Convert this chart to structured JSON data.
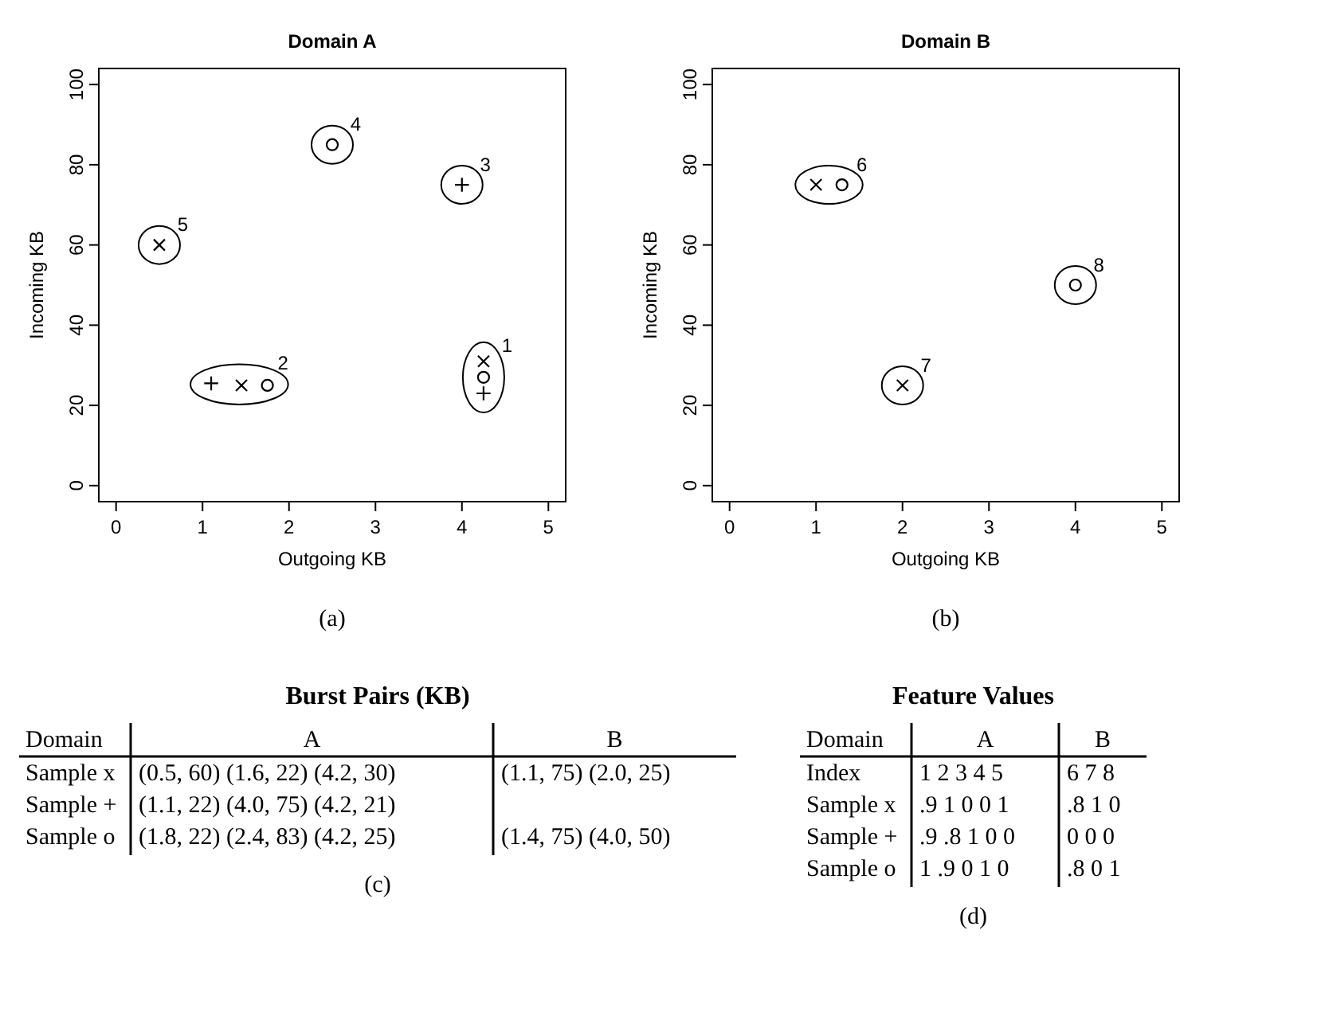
{
  "chart_data": [
    {
      "type": "scatter",
      "title": "Domain A",
      "xlabel": "Outgoing KB",
      "ylabel": "Incoming KB",
      "xlim": [
        -0.2,
        5.2
      ],
      "ylim": [
        -4,
        104
      ],
      "xticks": [
        0,
        1,
        2,
        3,
        4,
        5
      ],
      "yticks": [
        0,
        20,
        40,
        60,
        80,
        100
      ],
      "series": [
        {
          "color": "#000000",
          "marker": "cross",
          "x": [
            0.5,
            1.45,
            4.25
          ],
          "values": [
            60,
            25,
            31
          ]
        },
        {
          "color": "#000000",
          "marker": "plus",
          "x": [
            1.1,
            4.0,
            4.25
          ],
          "values": [
            25.5,
            75,
            23
          ]
        },
        {
          "color": "#000000",
          "marker": "circle",
          "x": [
            1.75,
            2.5,
            4.25
          ],
          "values": [
            25,
            85,
            27
          ]
        }
      ],
      "annotations": [
        {
          "text": "1",
          "x": 4.25,
          "y": 27
        },
        {
          "text": "2",
          "x": 1.45,
          "y": 25
        },
        {
          "text": "3",
          "x": 4.0,
          "y": 75
        },
        {
          "text": "4",
          "x": 2.5,
          "y": 85
        },
        {
          "text": "5",
          "x": 0.5,
          "y": 60
        },
        "(a)"
      ]
    },
    {
      "type": "scatter",
      "title": "Domain B",
      "xlabel": "Outgoing KB",
      "ylabel": "Incoming KB",
      "xlim": [
        -0.2,
        5.2
      ],
      "ylim": [
        -4,
        104
      ],
      "xticks": [
        0,
        1,
        2,
        3,
        4,
        5
      ],
      "yticks": [
        0,
        20,
        40,
        60,
        80,
        100
      ],
      "series": [
        {
          "color": "#000000",
          "marker": "cross",
          "x": [
            1.0,
            2.0
          ],
          "values": [
            75,
            25
          ]
        },
        {
          "color": "#000000",
          "marker": "circle",
          "x": [
            1.3,
            4.0
          ],
          "values": [
            75,
            50
          ]
        }
      ],
      "annotations": [
        {
          "text": "6",
          "x": 1.15,
          "y": 75
        },
        {
          "text": "7",
          "x": 2.0,
          "y": 25
        },
        {
          "text": "8",
          "x": 4.0,
          "y": 50
        },
        "(b)"
      ]
    },
    {
      "type": "other",
      "title": "Burst Pairs (KB)",
      "categories": [
        "Domain",
        "A",
        "B"
      ],
      "cell_labels": [
        [
          "Sample x",
          "(0.5, 60) (1.6, 22) (4.2, 30)",
          "(1.1, 75) (2.0, 25)"
        ],
        [
          "Sample +",
          "(1.1, 22) (4.0, 75) (4.2, 21)",
          null
        ],
        [
          "Sample o",
          "(1.8, 22) (2.4, 83) (4.2, 25)",
          "(1.4, 75) (4.0, 50)"
        ]
      ],
      "annotations": [
        "(c)"
      ]
    },
    {
      "type": "other",
      "title": "Feature Values",
      "categories": [
        "Domain",
        "A",
        "B"
      ],
      "cell_labels": [
        [
          "Index",
          "1 2 3 4 5",
          "6 7 8"
        ],
        [
          "Sample x",
          ".9 1 0 0 1",
          ".8 1 0"
        ],
        [
          "Sample +",
          ".9 .8 1 0 0",
          "0 0 0"
        ],
        [
          "Sample o",
          "1 .9 0 1 0",
          ".8 0 1"
        ]
      ],
      "annotations": [
        "(d)"
      ]
    }
  ]
}
